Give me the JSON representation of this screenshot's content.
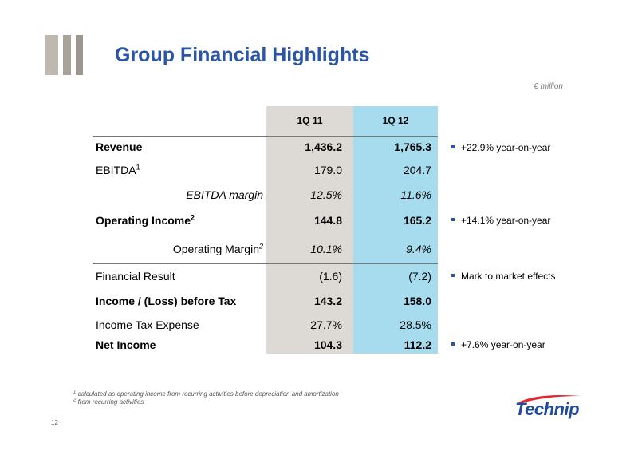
{
  "title": "Group Financial Highlights",
  "unit": "€ million",
  "columns": [
    "1Q 11",
    "1Q 12"
  ],
  "rows": [
    {
      "label": "Revenue",
      "sup": "",
      "v1": "1,436.2",
      "v2": "1,765.3"
    },
    {
      "label": "EBITDA",
      "sup": "1",
      "v1": "179.0",
      "v2": "204.7"
    },
    {
      "label": "EBITDA margin",
      "sup": "",
      "v1": "12.5%",
      "v2": "11.6%"
    },
    {
      "label": "Operating Income",
      "sup": "2",
      "v1": "144.8",
      "v2": "165.2"
    },
    {
      "label": "Operating Margin",
      "sup": "2",
      "v1": "10.1%",
      "v2": "9.4%"
    },
    {
      "label": "Financial Result",
      "sup": "",
      "v1": "(1.6)",
      "v2": "(7.2)"
    },
    {
      "label": "Income / (Loss) before Tax",
      "sup": "",
      "v1": "143.2",
      "v2": "158.0"
    },
    {
      "label": "Income Tax Expense",
      "sup": "",
      "v1": "27.7%",
      "v2": "28.5%"
    },
    {
      "label": "Net Income",
      "sup": "",
      "v1": "104.3",
      "v2": "112.2"
    }
  ],
  "notes": [
    "+22.9% year-on-year",
    "+14.1% year-on-year",
    "Mark to market effects",
    "+7.6% year-on-year"
  ],
  "footnotes": [
    {
      "num": "1",
      "text": "calculated as operating income from recurring activities before depreciation and amortization"
    },
    {
      "num": "2",
      "text": "from recurring activities"
    }
  ],
  "page_number": "12",
  "logo_text": "Technip",
  "colors": {
    "title": "#2a55a6",
    "col1": "#ddd9d4",
    "col2": "#a7dcef",
    "bullet": "#2a55a6"
  }
}
